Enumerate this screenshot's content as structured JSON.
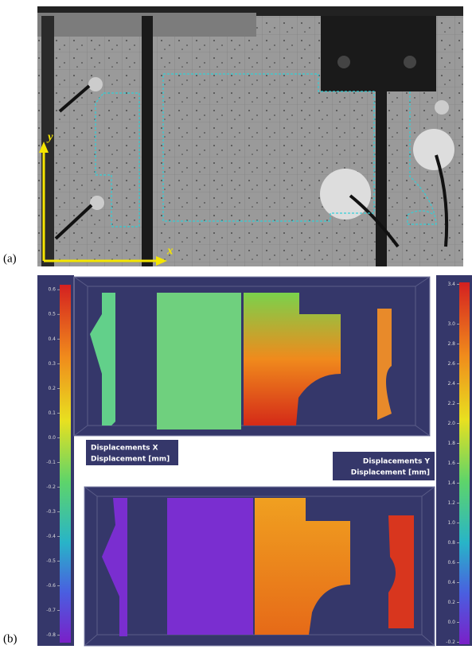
{
  "panel_a": {
    "label": "(a)",
    "x_axis": "x",
    "y_axis": "y"
  },
  "panel_b": {
    "label": "(b)",
    "plot_x": {
      "title": "Displacements X",
      "unit": "Displacement [mm]",
      "colorbar": {
        "ylim": [
          -0.83,
          0.62
        ],
        "yticks": [
          0.6,
          0.5,
          0.4,
          0.3,
          0.2,
          0.1,
          {
            "value": 0,
            "label": "0.0"
          },
          -0.1,
          -0.2,
          -0.3,
          -0.4,
          -0.5,
          -0.6,
          -0.7,
          -0.8
        ]
      }
    },
    "plot_y": {
      "title": "Displacements Y",
      "unit": "Displacement [mm]",
      "colorbar": {
        "ylim": [
          -0.22,
          3.42
        ],
        "yticks": [
          3.4,
          {
            "value": 3,
            "label": "3.0"
          },
          2.8,
          2.6,
          2.4,
          2.2,
          {
            "value": 2,
            "label": "2.0"
          },
          1.8,
          1.6,
          1.4,
          1.2,
          {
            "value": 1,
            "label": "1.0"
          },
          0.8,
          0.6,
          0.4,
          0.2,
          {
            "value": 0,
            "label": "0.0"
          },
          -0.2
        ]
      }
    }
  }
}
